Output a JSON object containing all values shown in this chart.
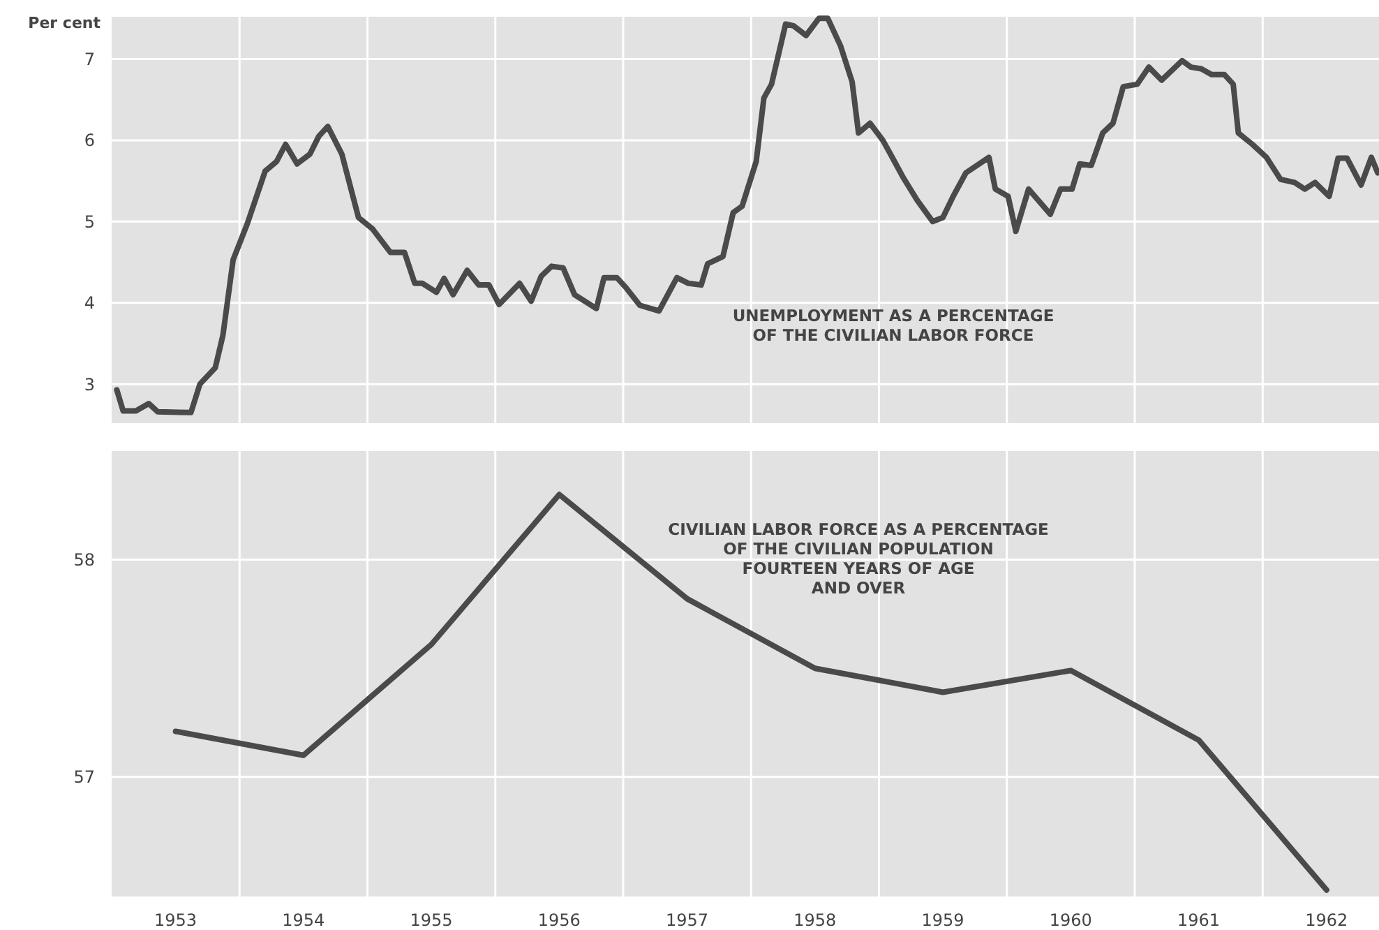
{
  "chart_data": [
    {
      "type": "line",
      "title": "UNEMPLOYMENT AS A PERCENTAGE\nOF THE CIVILIAN LABOR FORCE",
      "ylabel": "Per cent",
      "tick_labels": "y",
      "grid": true,
      "line_style": "solid",
      "xlim": [
        1953,
        1962.91
      ],
      "ylim": [
        2.52,
        7.52
      ],
      "yticks": [
        3,
        4,
        5,
        6,
        7
      ],
      "xticks": [
        {
          "value": 1954,
          "label": null
        },
        {
          "value": 1955,
          "label": null
        },
        {
          "value": 1956,
          "label": null
        },
        {
          "value": 1957,
          "label": null
        },
        {
          "value": 1958,
          "label": null
        },
        {
          "value": 1959,
          "label": null
        },
        {
          "value": 1960,
          "label": null
        },
        {
          "value": 1961,
          "label": null
        },
        {
          "value": 1962,
          "label": null
        }
      ],
      "series": [
        {
          "color": "#4a4a4a",
          "x": [
            1953.04,
            1953.09,
            1953.19,
            1953.29,
            1953.36,
            1953.62,
            1953.69,
            1953.81,
            1953.87,
            1953.95,
            1954.06,
            1954.2,
            1954.29,
            1954.36,
            1954.45,
            1954.55,
            1954.62,
            1954.69,
            1954.8,
            1954.93,
            1955.04,
            1955.18,
            1955.29,
            1955.37,
            1955.43,
            1955.54,
            1955.6,
            1955.67,
            1955.78,
            1955.87,
            1955.95,
            1956.03,
            1956.19,
            1956.28,
            1956.36,
            1956.44,
            1956.53,
            1956.62,
            1956.79,
            1956.85,
            1956.95,
            1957.02,
            1957.13,
            1957.28,
            1957.42,
            1957.51,
            1957.61,
            1957.66,
            1957.78,
            1957.86,
            1957.93,
            1958.04,
            1958.1,
            1958.16,
            1958.27,
            1958.33,
            1958.43,
            1958.53,
            1958.6,
            1958.7,
            1958.79,
            1958.84,
            1958.93,
            1959.03,
            1959.09,
            1959.19,
            1959.3,
            1959.42,
            1959.5,
            1959.58,
            1959.68,
            1959.86,
            1959.91,
            1960.01,
            1960.07,
            1960.17,
            1960.34,
            1960.42,
            1960.51,
            1960.57,
            1960.66,
            1960.75,
            1960.83,
            1960.91,
            1961.02,
            1961.11,
            1961.21,
            1961.37,
            1961.44,
            1961.52,
            1961.6,
            1961.7,
            1961.77,
            1961.81,
            1961.92,
            1962.03,
            1962.14,
            1962.25,
            1962.33,
            1962.41,
            1962.52,
            1962.59,
            1962.66,
            1962.77,
            1962.85,
            1962.9
          ],
          "values": [
            2.93,
            2.67,
            2.67,
            2.76,
            2.66,
            2.65,
            3.0,
            3.2,
            3.6,
            4.53,
            4.97,
            5.62,
            5.74,
            5.95,
            5.71,
            5.83,
            6.05,
            6.17,
            5.83,
            5.05,
            4.91,
            4.62,
            4.62,
            4.24,
            4.24,
            4.13,
            4.3,
            4.1,
            4.4,
            4.22,
            4.22,
            3.98,
            4.24,
            4.02,
            4.33,
            4.45,
            4.43,
            4.1,
            3.93,
            4.31,
            4.31,
            4.19,
            3.97,
            3.9,
            4.31,
            4.24,
            4.22,
            4.48,
            4.57,
            5.11,
            5.19,
            5.74,
            6.52,
            6.69,
            7.43,
            7.41,
            7.29,
            7.5,
            7.5,
            7.16,
            6.72,
            6.09,
            6.21,
            6.0,
            5.83,
            5.54,
            5.26,
            5.0,
            5.05,
            5.31,
            5.6,
            5.79,
            5.4,
            5.31,
            4.88,
            5.4,
            5.09,
            5.4,
            5.4,
            5.71,
            5.69,
            6.09,
            6.21,
            6.66,
            6.69,
            6.9,
            6.74,
            6.98,
            6.9,
            6.88,
            6.81,
            6.81,
            6.69,
            6.09,
            5.95,
            5.79,
            5.52,
            5.48,
            5.4,
            5.48,
            5.31,
            5.78,
            5.78,
            5.45,
            5.79,
            5.6
          ]
        }
      ]
    },
    {
      "type": "line",
      "title": "CIVILIAN LABOR FORCE AS A PERCENTAGE\nOF THE CIVILIAN POPULATION\nFOURTEEN YEARS OF AGE\nAND OVER",
      "grid": true,
      "line_style": "solid",
      "xlim": [
        1953,
        1962.91
      ],
      "ylim": [
        56.45,
        58.5
      ],
      "yticks": [
        57,
        58
      ],
      "xticks": [
        {
          "value": 1954,
          "label": null
        },
        {
          "value": 1955,
          "label": null
        },
        {
          "value": 1956,
          "label": null
        },
        {
          "value": 1957,
          "label": null
        },
        {
          "value": 1958,
          "label": null
        },
        {
          "value": 1959,
          "label": null
        },
        {
          "value": 1960,
          "label": null
        },
        {
          "value": 1961,
          "label": null
        },
        {
          "value": 1962,
          "label": null
        },
        {
          "value": 1953.5,
          "label": "1953"
        },
        {
          "value": 1954.5,
          "label": "1954"
        },
        {
          "value": 1955.5,
          "label": "1955"
        },
        {
          "value": 1956.5,
          "label": "1956"
        },
        {
          "value": 1957.5,
          "label": "1957"
        },
        {
          "value": 1958.5,
          "label": "1958"
        },
        {
          "value": 1959.5,
          "label": "1959"
        },
        {
          "value": 1960.5,
          "label": "1960"
        },
        {
          "value": 1961.5,
          "label": "1961"
        },
        {
          "value": 1962.5,
          "label": "1962"
        }
      ],
      "series": [
        {
          "color": "#4a4a4a",
          "x": [
            1953.5,
            1954.5,
            1955.5,
            1956.5,
            1957.5,
            1958.5,
            1959.5,
            1960.5,
            1961.5,
            1962.5
          ],
          "values": [
            57.21,
            57.1,
            57.61,
            58.3,
            57.82,
            57.5,
            57.39,
            57.49,
            57.17,
            56.48
          ]
        }
      ]
    }
  ]
}
